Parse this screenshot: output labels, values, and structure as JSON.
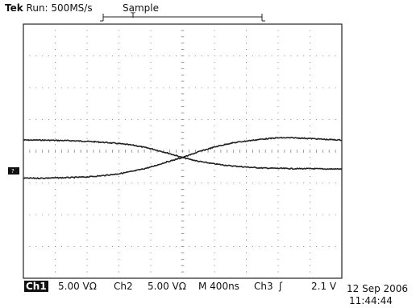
{
  "status": {
    "brand": "Tek",
    "run_state": "Run: 500MS/s",
    "acquire_mode": "Sample"
  },
  "readout": {
    "ch1_label": "Ch1",
    "ch1_scale": "5.00 VΩ",
    "ch2_label": "Ch2",
    "ch2_scale": "5.00 VΩ",
    "timebase": "M 400ns",
    "trigger_source": "Ch3",
    "trigger_slope_icon": "rising-edge-icon",
    "trigger_level": "2.1 V"
  },
  "timestamp": {
    "date": "12 Sep 2006",
    "time": "11:44:44"
  },
  "channel_marker_icon": "ground-marker-icon",
  "chart_data": {
    "type": "line",
    "grid": true,
    "x": [
      0,
      0.5,
      1,
      1.5,
      2,
      2.5,
      3,
      3.5,
      4,
      4.5,
      5,
      5.5,
      6,
      6.5,
      7,
      7.5,
      8,
      8.5,
      9,
      9.5,
      10
    ],
    "xlim": [
      0,
      10
    ],
    "ylim": [
      -4,
      4
    ],
    "series": [
      {
        "values": [
          0.35,
          0.35,
          0.34,
          0.33,
          0.31,
          0.28,
          0.24,
          0.18,
          0.08,
          -0.05,
          -0.2,
          -0.32,
          -0.4,
          -0.46,
          -0.5,
          -0.53,
          -0.54,
          -0.55,
          -0.55,
          -0.56,
          -0.56
        ]
      },
      {
        "values": [
          -0.85,
          -0.85,
          -0.84,
          -0.83,
          -0.81,
          -0.77,
          -0.71,
          -0.62,
          -0.5,
          -0.34,
          -0.2,
          -0.02,
          0.13,
          0.25,
          0.32,
          0.38,
          0.42,
          0.42,
          0.4,
          0.37,
          0.35
        ]
      }
    ],
    "trigger_position_x": 4.95
  },
  "colors": {
    "trace": "#222222",
    "grid": "#777777",
    "frame": "#222222"
  }
}
